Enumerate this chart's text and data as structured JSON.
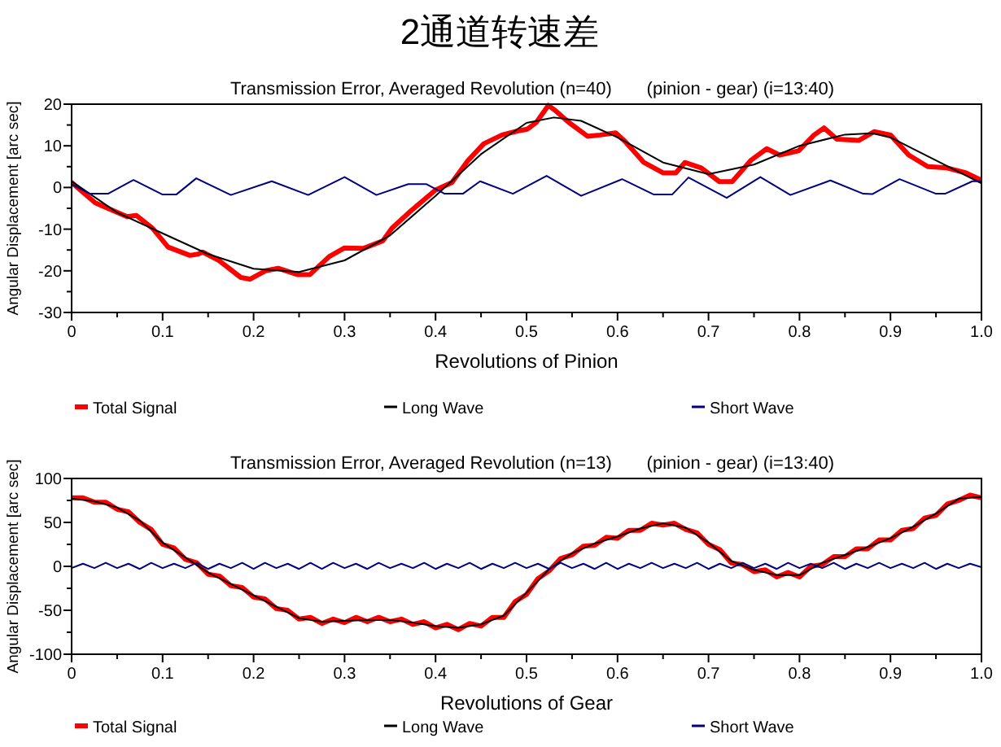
{
  "chart_data": [
    {
      "type": "line",
      "title": "2通道转速差",
      "subtitle": "Transmission Error, Averaged Revolution (n=40)       (pinion - gear) (i=13:40)",
      "xlabel": "Revolutions of Pinion",
      "ylabel": "Angular Displacement [arc sec]",
      "xlim": [
        0,
        1
      ],
      "ylim": [
        -30,
        20
      ],
      "xticks": [
        0,
        {
          "value": 0.05,
          "label": null
        },
        0.1,
        {
          "value": 0.15,
          "label": null
        },
        0.2,
        {
          "value": 0.25,
          "label": null
        },
        0.3,
        {
          "value": 0.35,
          "label": null
        },
        0.4,
        {
          "value": 0.45,
          "label": null
        },
        0.5,
        {
          "value": 0.55,
          "label": null
        },
        0.6,
        {
          "value": 0.65,
          "label": null
        },
        0.7,
        {
          "value": 0.75,
          "label": null
        },
        0.8,
        {
          "value": 0.85,
          "label": null
        },
        0.9,
        {
          "value": 0.95,
          "label": null
        },
        {
          "value": 1,
          "label": "1.0"
        }
      ],
      "yticks": [
        -30,
        {
          "value": -25,
          "label": null
        },
        -20,
        {
          "value": -15,
          "label": null
        },
        -10,
        {
          "value": -5,
          "label": null
        },
        0,
        {
          "value": 5,
          "label": null
        },
        10,
        {
          "value": 15,
          "label": null
        },
        20
      ],
      "grid": false,
      "legend": "bottom",
      "series": [
        {
          "name": "Total Signal",
          "color": "#ff0000",
          "x": [
            0,
            0.026,
            0.061,
            0.071,
            0.089,
            0.106,
            0.13,
            0.139,
            0.144,
            0.161,
            0.186,
            0.196,
            0.213,
            0.227,
            0.248,
            0.262,
            0.283,
            0.3,
            0.321,
            0.342,
            0.352,
            0.373,
            0.4,
            0.418,
            0.435,
            0.453,
            0.473,
            0.491,
            0.501,
            0.511,
            0.524,
            0.532,
            0.546,
            0.567,
            0.581,
            0.598,
            0.608,
            0.629,
            0.65,
            0.664,
            0.674,
            0.692,
            0.712,
            0.726,
            0.747,
            0.764,
            0.778,
            0.799,
            0.816,
            0.827,
            0.841,
            0.865,
            0.882,
            0.9,
            0.92,
            0.941,
            0.962,
            0.983,
            1
          ],
          "values": [
            1.2,
            -3.7,
            -7,
            -6.7,
            -9.8,
            -14.3,
            -16.3,
            -16,
            -15.5,
            -17.4,
            -21.6,
            -22,
            -20,
            -19.4,
            -20.9,
            -20.9,
            -16.6,
            -14.5,
            -14.6,
            -12.8,
            -9.8,
            -5.6,
            -0.6,
            1.2,
            6.3,
            10.5,
            12.6,
            13.6,
            14,
            15.7,
            19.7,
            18.4,
            15.7,
            12.3,
            12.6,
            13.1,
            11.1,
            6,
            3.5,
            3.5,
            6,
            4.7,
            1.4,
            1.4,
            6.6,
            9.3,
            7.8,
            8.8,
            12.6,
            14.3,
            11.6,
            11.3,
            13.4,
            12.6,
            7.8,
            5,
            4.7,
            3.5,
            1.7
          ]
        },
        {
          "name": "Long Wave",
          "color": "#000000",
          "x": [
            0,
            0.05,
            0.1,
            0.15,
            0.2,
            0.25,
            0.3,
            0.35,
            0.4,
            0.45,
            0.5,
            0.53,
            0.56,
            0.6,
            0.65,
            0.7,
            0.75,
            0.8,
            0.85,
            0.88,
            0.9,
            0.95,
            1
          ],
          "values": [
            1.5,
            -6,
            -11,
            -16,
            -19.5,
            -20.3,
            -17.5,
            -11.5,
            -2,
            8,
            15.5,
            16.8,
            16,
            12,
            6,
            3.2,
            5.5,
            10,
            12.7,
            13,
            12,
            6.5,
            1
          ]
        },
        {
          "name": "Short Wave",
          "color": "#000080",
          "x": [
            0,
            0.02,
            0.04,
            0.068,
            0.1,
            0.115,
            0.137,
            0.175,
            0.22,
            0.26,
            0.3,
            0.335,
            0.37,
            0.39,
            0.41,
            0.43,
            0.449,
            0.485,
            0.522,
            0.56,
            0.605,
            0.64,
            0.66,
            0.678,
            0.72,
            0.757,
            0.79,
            0.834,
            0.87,
            0.88,
            0.91,
            0.95,
            0.96,
            0.99,
            1
          ],
          "values": [
            0.8,
            -1.5,
            -1.5,
            1.8,
            -1.7,
            -1.7,
            2.2,
            -1.8,
            1.5,
            -1.8,
            2.5,
            -1.8,
            0.8,
            0.8,
            -1.5,
            -1.5,
            1.5,
            -1.5,
            2.8,
            -2,
            2,
            -1.7,
            -1.7,
            2.4,
            -2.5,
            2.5,
            -1.8,
            1.7,
            -1.5,
            -1.6,
            2,
            -1.5,
            -1.5,
            1.5,
            1.5
          ]
        }
      ]
    },
    {
      "type": "line",
      "title": "Transmission Error, Averaged Revolution (n=13)       (pinion - gear) (i=13:40)",
      "xlabel": "Revolutions of Gear",
      "ylabel": "Angular Displacement [arc sec]",
      "xlim": [
        0,
        1
      ],
      "ylim": [
        -100,
        100
      ],
      "xticks": [
        0,
        {
          "value": 0.05,
          "label": null
        },
        0.1,
        {
          "value": 0.15,
          "label": null
        },
        0.2,
        {
          "value": 0.25,
          "label": null
        },
        0.3,
        {
          "value": 0.35,
          "label": null
        },
        0.4,
        {
          "value": 0.45,
          "label": null
        },
        0.5,
        {
          "value": 0.55,
          "label": null
        },
        0.6,
        {
          "value": 0.65,
          "label": null
        },
        0.7,
        {
          "value": 0.75,
          "label": null
        },
        0.8,
        {
          "value": 0.85,
          "label": null
        },
        0.9,
        {
          "value": 0.95,
          "label": null
        },
        {
          "value": 1,
          "label": "1.0"
        }
      ],
      "yticks": [
        -100,
        {
          "value": -75,
          "label": null
        },
        -50,
        {
          "value": -25,
          "label": null
        },
        0,
        {
          "value": 25,
          "label": null
        },
        50,
        {
          "value": 75,
          "label": null
        },
        100
      ],
      "grid": false,
      "legend": "bottom",
      "x": [
        0,
        0.0125,
        0.025,
        0.0375,
        0.05,
        0.0625,
        0.075,
        0.0875,
        0.1,
        0.1125,
        0.125,
        0.1375,
        0.15,
        0.1625,
        0.175,
        0.1875,
        0.2,
        0.2125,
        0.225,
        0.2375,
        0.25,
        0.2625,
        0.275,
        0.2875,
        0.3,
        0.3125,
        0.325,
        0.3375,
        0.35,
        0.3625,
        0.375,
        0.3875,
        0.4,
        0.4125,
        0.425,
        0.4375,
        0.45,
        0.4625,
        0.475,
        0.4875,
        0.5,
        0.5125,
        0.525,
        0.5375,
        0.55,
        0.5625,
        0.575,
        0.5875,
        0.6,
        0.6125,
        0.625,
        0.6375,
        0.65,
        0.6625,
        0.675,
        0.6875,
        0.7,
        0.7125,
        0.725,
        0.7375,
        0.75,
        0.7625,
        0.775,
        0.7875,
        0.8,
        0.8125,
        0.825,
        0.8375,
        0.85,
        0.8625,
        0.875,
        0.8875,
        0.9,
        0.9125,
        0.925,
        0.9375,
        0.95,
        0.9625,
        0.975,
        0.9875,
        1
      ],
      "series": [
        {
          "name": "Total Signal",
          "color": "#ff0000",
          "values": [
            78,
            78,
            73,
            73,
            65,
            62,
            50,
            42,
            25,
            21,
            8,
            4,
            -9,
            -11,
            -22,
            -24,
            -35,
            -37,
            -48,
            -50,
            -60,
            -58,
            -65,
            -60,
            -64,
            -58,
            -63,
            -58,
            -63,
            -60,
            -66,
            -63,
            -70,
            -66,
            -72,
            -65,
            -68,
            -58,
            -58,
            -40,
            -32,
            -14,
            -5,
            9,
            13,
            23,
            24,
            33,
            32,
            41,
            41,
            49,
            47,
            49,
            42,
            38,
            25,
            19,
            4,
            2,
            -6,
            -4,
            -12,
            -7,
            -12,
            0,
            2,
            11,
            11,
            20,
            20,
            30,
            30,
            41,
            43,
            55,
            58,
            71,
            75,
            81,
            78
          ]
        },
        {
          "name": "Long Wave",
          "color": "#000000",
          "x": [
            0,
            0.025,
            0.05,
            0.075,
            0.1,
            0.125,
            0.15,
            0.175,
            0.2,
            0.225,
            0.25,
            0.275,
            0.3,
            0.325,
            0.35,
            0.375,
            0.4,
            0.425,
            0.45,
            0.475,
            0.5,
            0.525,
            0.55,
            0.575,
            0.6,
            0.625,
            0.65,
            0.675,
            0.7,
            0.725,
            0.75,
            0.775,
            0.8,
            0.825,
            0.85,
            0.875,
            0.9,
            0.925,
            0.95,
            0.975,
            1
          ],
          "values": [
            77,
            74,
            67,
            52,
            27,
            10,
            -7,
            -20,
            -33,
            -46,
            -59,
            -63,
            -62,
            -61,
            -61,
            -64,
            -68,
            -70,
            -66,
            -56,
            -30,
            -3,
            15,
            26,
            34,
            43,
            49,
            44,
            27,
            6,
            -4,
            -10,
            -10,
            4,
            13,
            22,
            32,
            45,
            60,
            77,
            79
          ]
        },
        {
          "name": "Short Wave",
          "color": "#000080",
          "values": [
            -2,
            3,
            -2,
            4,
            -2,
            3,
            -3,
            4,
            -2,
            3,
            -2,
            4,
            -3,
            3,
            -2,
            4,
            -3,
            4,
            -2,
            3,
            -3,
            4,
            -3,
            4,
            -2,
            3,
            -3,
            4,
            -2,
            3,
            -2,
            4,
            -3,
            3,
            -2,
            4,
            -3,
            3,
            -2,
            4,
            -2,
            3,
            -3,
            4,
            -2,
            3,
            -3,
            4,
            -3,
            3,
            -2,
            4,
            -2,
            3,
            -2,
            4,
            -3,
            3,
            -2,
            4,
            -2,
            3,
            -3,
            4,
            -2,
            3,
            -2,
            4,
            -3,
            3,
            -2,
            4,
            -2,
            3,
            -2,
            4,
            -3,
            3,
            -2,
            3,
            -1
          ]
        }
      ]
    }
  ]
}
